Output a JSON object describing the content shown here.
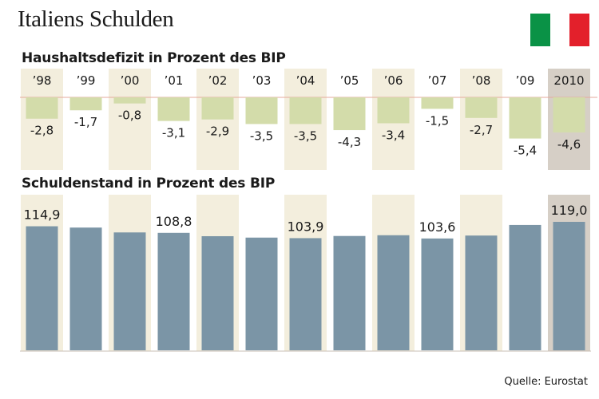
{
  "title": "Italiens Schulden",
  "flag": {
    "colors": [
      "#0a9246",
      "#ffffff",
      "#e3202b"
    ]
  },
  "source": "Quelle: Eurostat",
  "colors": {
    "band": "#f3eedd",
    "band_highlight": "#d6cfc6",
    "deficit_bar": "#d3dcaa",
    "debt_bar": "#7b95a6",
    "zero_line": "#e6a99c",
    "axis_line": "#c9bfb4"
  },
  "chart_data": [
    {
      "type": "bar",
      "title": "Haushaltsdefizit in Prozent des BIP",
      "categories": [
        "’98",
        "’99",
        "’00",
        "’01",
        "’02",
        "’03",
        "’04",
        "’05",
        "’06",
        "’07",
        "’08",
        "’09",
        "2010"
      ],
      "values": [
        -2.8,
        -1.7,
        -0.8,
        -3.1,
        -2.9,
        -3.5,
        -3.5,
        -4.3,
        -3.4,
        -1.5,
        -2.7,
        -5.4,
        -4.6
      ],
      "value_labels": [
        "-2,8",
        "-1,7",
        "-0,8",
        "-3,1",
        "-2,9",
        "-3,5",
        "-3,5",
        "-4,3",
        "-3,4",
        "-1,5",
        "-2,7",
        "-5,4",
        "-4,6"
      ],
      "highlight": "2010"
    },
    {
      "type": "bar",
      "title": "Schuldenstand in Prozent des BIP",
      "categories": [
        "’98",
        "’99",
        "’00",
        "’01",
        "’02",
        "’03",
        "’04",
        "’05",
        "’06",
        "’07",
        "’08",
        "’09",
        "2010"
      ],
      "values": [
        114.9,
        113.7,
        109.2,
        108.8,
        105.7,
        104.4,
        103.9,
        105.9,
        106.6,
        103.6,
        106.3,
        116.1,
        119.0
      ],
      "labels": {
        "’98": "114,9",
        "’01": "108,8",
        "’04": "103,9",
        "’07": "103,6",
        "2010": "119,0"
      },
      "highlight": "2010",
      "ylim": [
        0,
        119.0
      ]
    }
  ]
}
